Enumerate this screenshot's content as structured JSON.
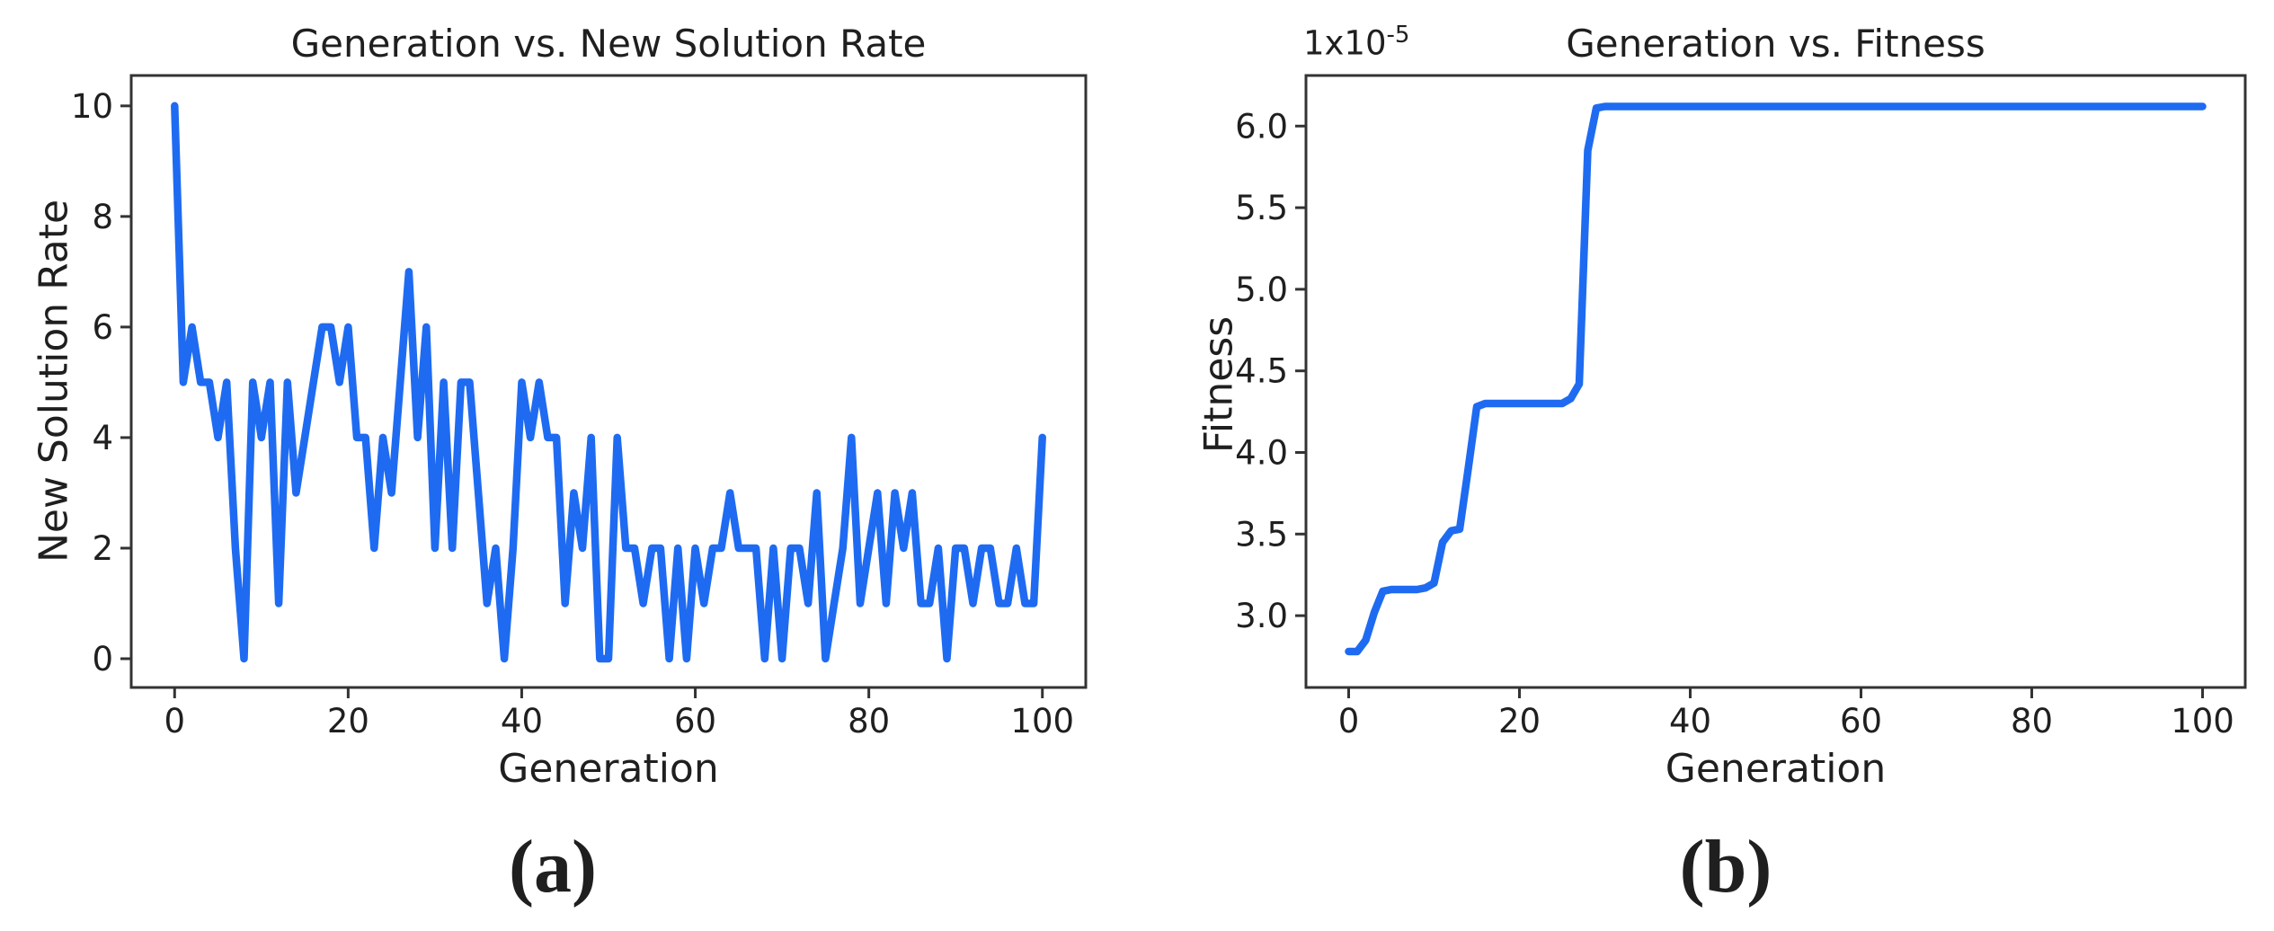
{
  "figure": {
    "background": "#ffffff",
    "axis_color": "#333333",
    "text_color": "#1f1f1f",
    "captions": {
      "left": "(a)",
      "right": "(b)"
    }
  },
  "chart_data": [
    {
      "id": "new-solution-rate",
      "type": "line",
      "title": "Generation vs. New Solution Rate",
      "xlabel": "Generation",
      "ylabel": "New Solution Rate",
      "line_color": "#1e6bf2",
      "grid": false,
      "legend": null,
      "xlim": [
        -5,
        105
      ],
      "ylim": [
        -0.52,
        10.55
      ],
      "x_ticks": [
        0,
        20,
        40,
        60,
        80,
        100
      ],
      "x_tick_labels": [
        "0",
        "20",
        "40",
        "60",
        "80",
        "100"
      ],
      "y_ticks": [
        0,
        2,
        4,
        6,
        8,
        10
      ],
      "y_tick_labels": [
        "0",
        "2",
        "4",
        "6",
        "8",
        "10"
      ],
      "x_start": 0,
      "x_step": 1,
      "values": [
        10,
        5,
        6,
        5,
        5,
        4,
        5,
        2,
        0,
        5,
        4,
        5,
        1,
        5,
        3,
        4,
        5,
        6,
        6,
        5,
        6,
        4,
        4,
        2,
        4,
        3,
        5,
        7,
        4,
        6,
        2,
        5,
        2,
        5,
        5,
        3,
        1,
        2,
        0,
        2,
        5,
        4,
        5,
        4,
        4,
        1,
        3,
        2,
        4,
        0,
        0,
        4,
        2,
        2,
        1,
        2,
        2,
        0,
        2,
        0,
        2,
        1,
        2,
        2,
        3,
        2,
        2,
        2,
        0,
        2,
        0,
        2,
        2,
        1,
        3,
        0,
        1,
        2,
        4,
        1,
        2,
        3,
        1,
        3,
        2,
        3,
        1,
        1,
        2,
        0,
        2,
        2,
        1,
        2,
        2,
        1,
        1,
        2,
        1,
        1,
        4
      ]
    },
    {
      "id": "fitness",
      "type": "line",
      "title": "Generation vs. Fitness",
      "xlabel": "Generation",
      "ylabel": "Fitness",
      "y_offset": {
        "base": "1x10",
        "exponent": "-5"
      },
      "y_unit_multiplier": "1e-5",
      "line_color": "#1e6bf2",
      "grid": false,
      "legend": null,
      "xlim": [
        -5,
        105
      ],
      "ylim": [
        2.56,
        6.31
      ],
      "x_ticks": [
        0,
        20,
        40,
        60,
        80,
        100
      ],
      "x_tick_labels": [
        "0",
        "20",
        "40",
        "60",
        "80",
        "100"
      ],
      "y_ticks": [
        3.0,
        3.5,
        4.0,
        4.5,
        5.0,
        5.5,
        6.0
      ],
      "y_tick_labels": [
        "3.0",
        "3.5",
        "4.0",
        "4.5",
        "5.0",
        "5.5",
        "6.0"
      ],
      "points": [
        [
          0,
          2.78
        ],
        [
          1,
          2.78
        ],
        [
          2,
          2.85
        ],
        [
          3,
          3.02
        ],
        [
          4,
          3.15
        ],
        [
          5,
          3.16
        ],
        [
          6,
          3.16
        ],
        [
          7,
          3.16
        ],
        [
          8,
          3.16
        ],
        [
          9,
          3.17
        ],
        [
          10,
          3.2
        ],
        [
          11,
          3.45
        ],
        [
          12,
          3.52
        ],
        [
          13,
          3.53
        ],
        [
          14,
          3.9
        ],
        [
          15,
          4.28
        ],
        [
          16,
          4.3
        ],
        [
          18,
          4.3
        ],
        [
          20,
          4.3
        ],
        [
          22,
          4.3
        ],
        [
          24,
          4.3
        ],
        [
          25,
          4.3
        ],
        [
          26,
          4.33
        ],
        [
          27,
          4.42
        ],
        [
          28,
          5.85
        ],
        [
          29,
          6.11
        ],
        [
          30,
          6.12
        ],
        [
          40,
          6.12
        ],
        [
          50,
          6.12
        ],
        [
          60,
          6.12
        ],
        [
          70,
          6.12
        ],
        [
          80,
          6.12
        ],
        [
          90,
          6.12
        ],
        [
          100,
          6.12
        ]
      ]
    }
  ]
}
